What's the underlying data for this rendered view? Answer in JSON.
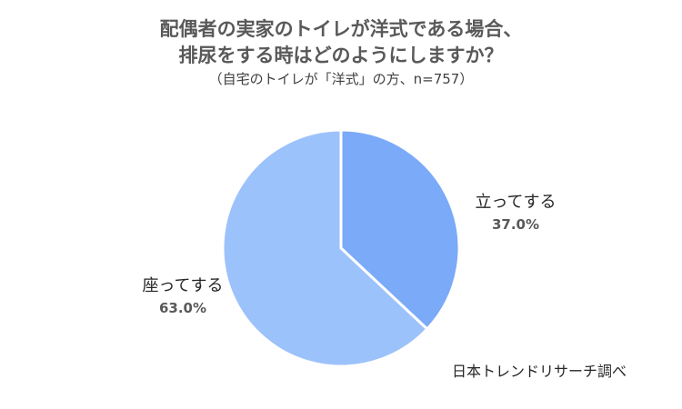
{
  "chart_data": {
    "type": "pie",
    "title": "配偶者の実家のトイレが洋式である場合、排尿をする時はどのようにしますか？",
    "title_lines": [
      "配偶者の実家のトイレが洋式である場合、",
      "排尿をする時はどのようにしますか？"
    ],
    "subtitle": "（自宅のトイレが「洋式」の方、n=757）",
    "slices": [
      {
        "label": "立ってする",
        "value": 37.0,
        "value_label": "37.0%",
        "color": "#7aaaf8"
      },
      {
        "label": "座ってする",
        "value": 63.0,
        "value_label": "63.0%",
        "color": "#9cc2fb"
      }
    ],
    "start_angle": "12 o'clock",
    "direction": "clockwise",
    "slice_border_color": "#ffffff",
    "legend": "none (labels placed beside slices)",
    "source": "日本トレンドリサーチ調べ"
  }
}
